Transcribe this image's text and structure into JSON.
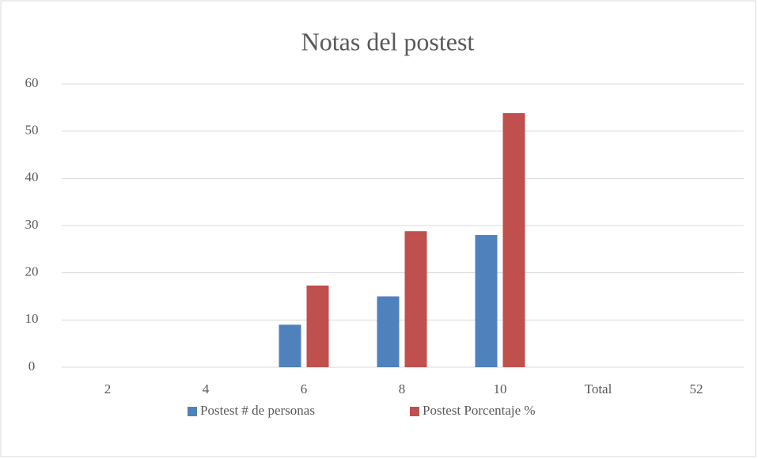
{
  "chart_data": {
    "type": "bar",
    "title": "Notas del postest",
    "categories": [
      "2",
      "4",
      "6",
      "8",
      "10",
      "Total",
      "52"
    ],
    "series": [
      {
        "name": "Postest # de personas",
        "color": "#4f81bd",
        "values": [
          0,
          0,
          9,
          15,
          28,
          0,
          0
        ]
      },
      {
        "name": "Postest Porcentaje %",
        "color": "#c0504d",
        "values": [
          0,
          0,
          17.3,
          28.8,
          53.8,
          0,
          0
        ]
      }
    ],
    "ylim": [
      0,
      60
    ],
    "yticks": [
      0,
      10,
      20,
      30,
      40,
      50,
      60
    ],
    "grid": true,
    "legend": "bottom"
  }
}
